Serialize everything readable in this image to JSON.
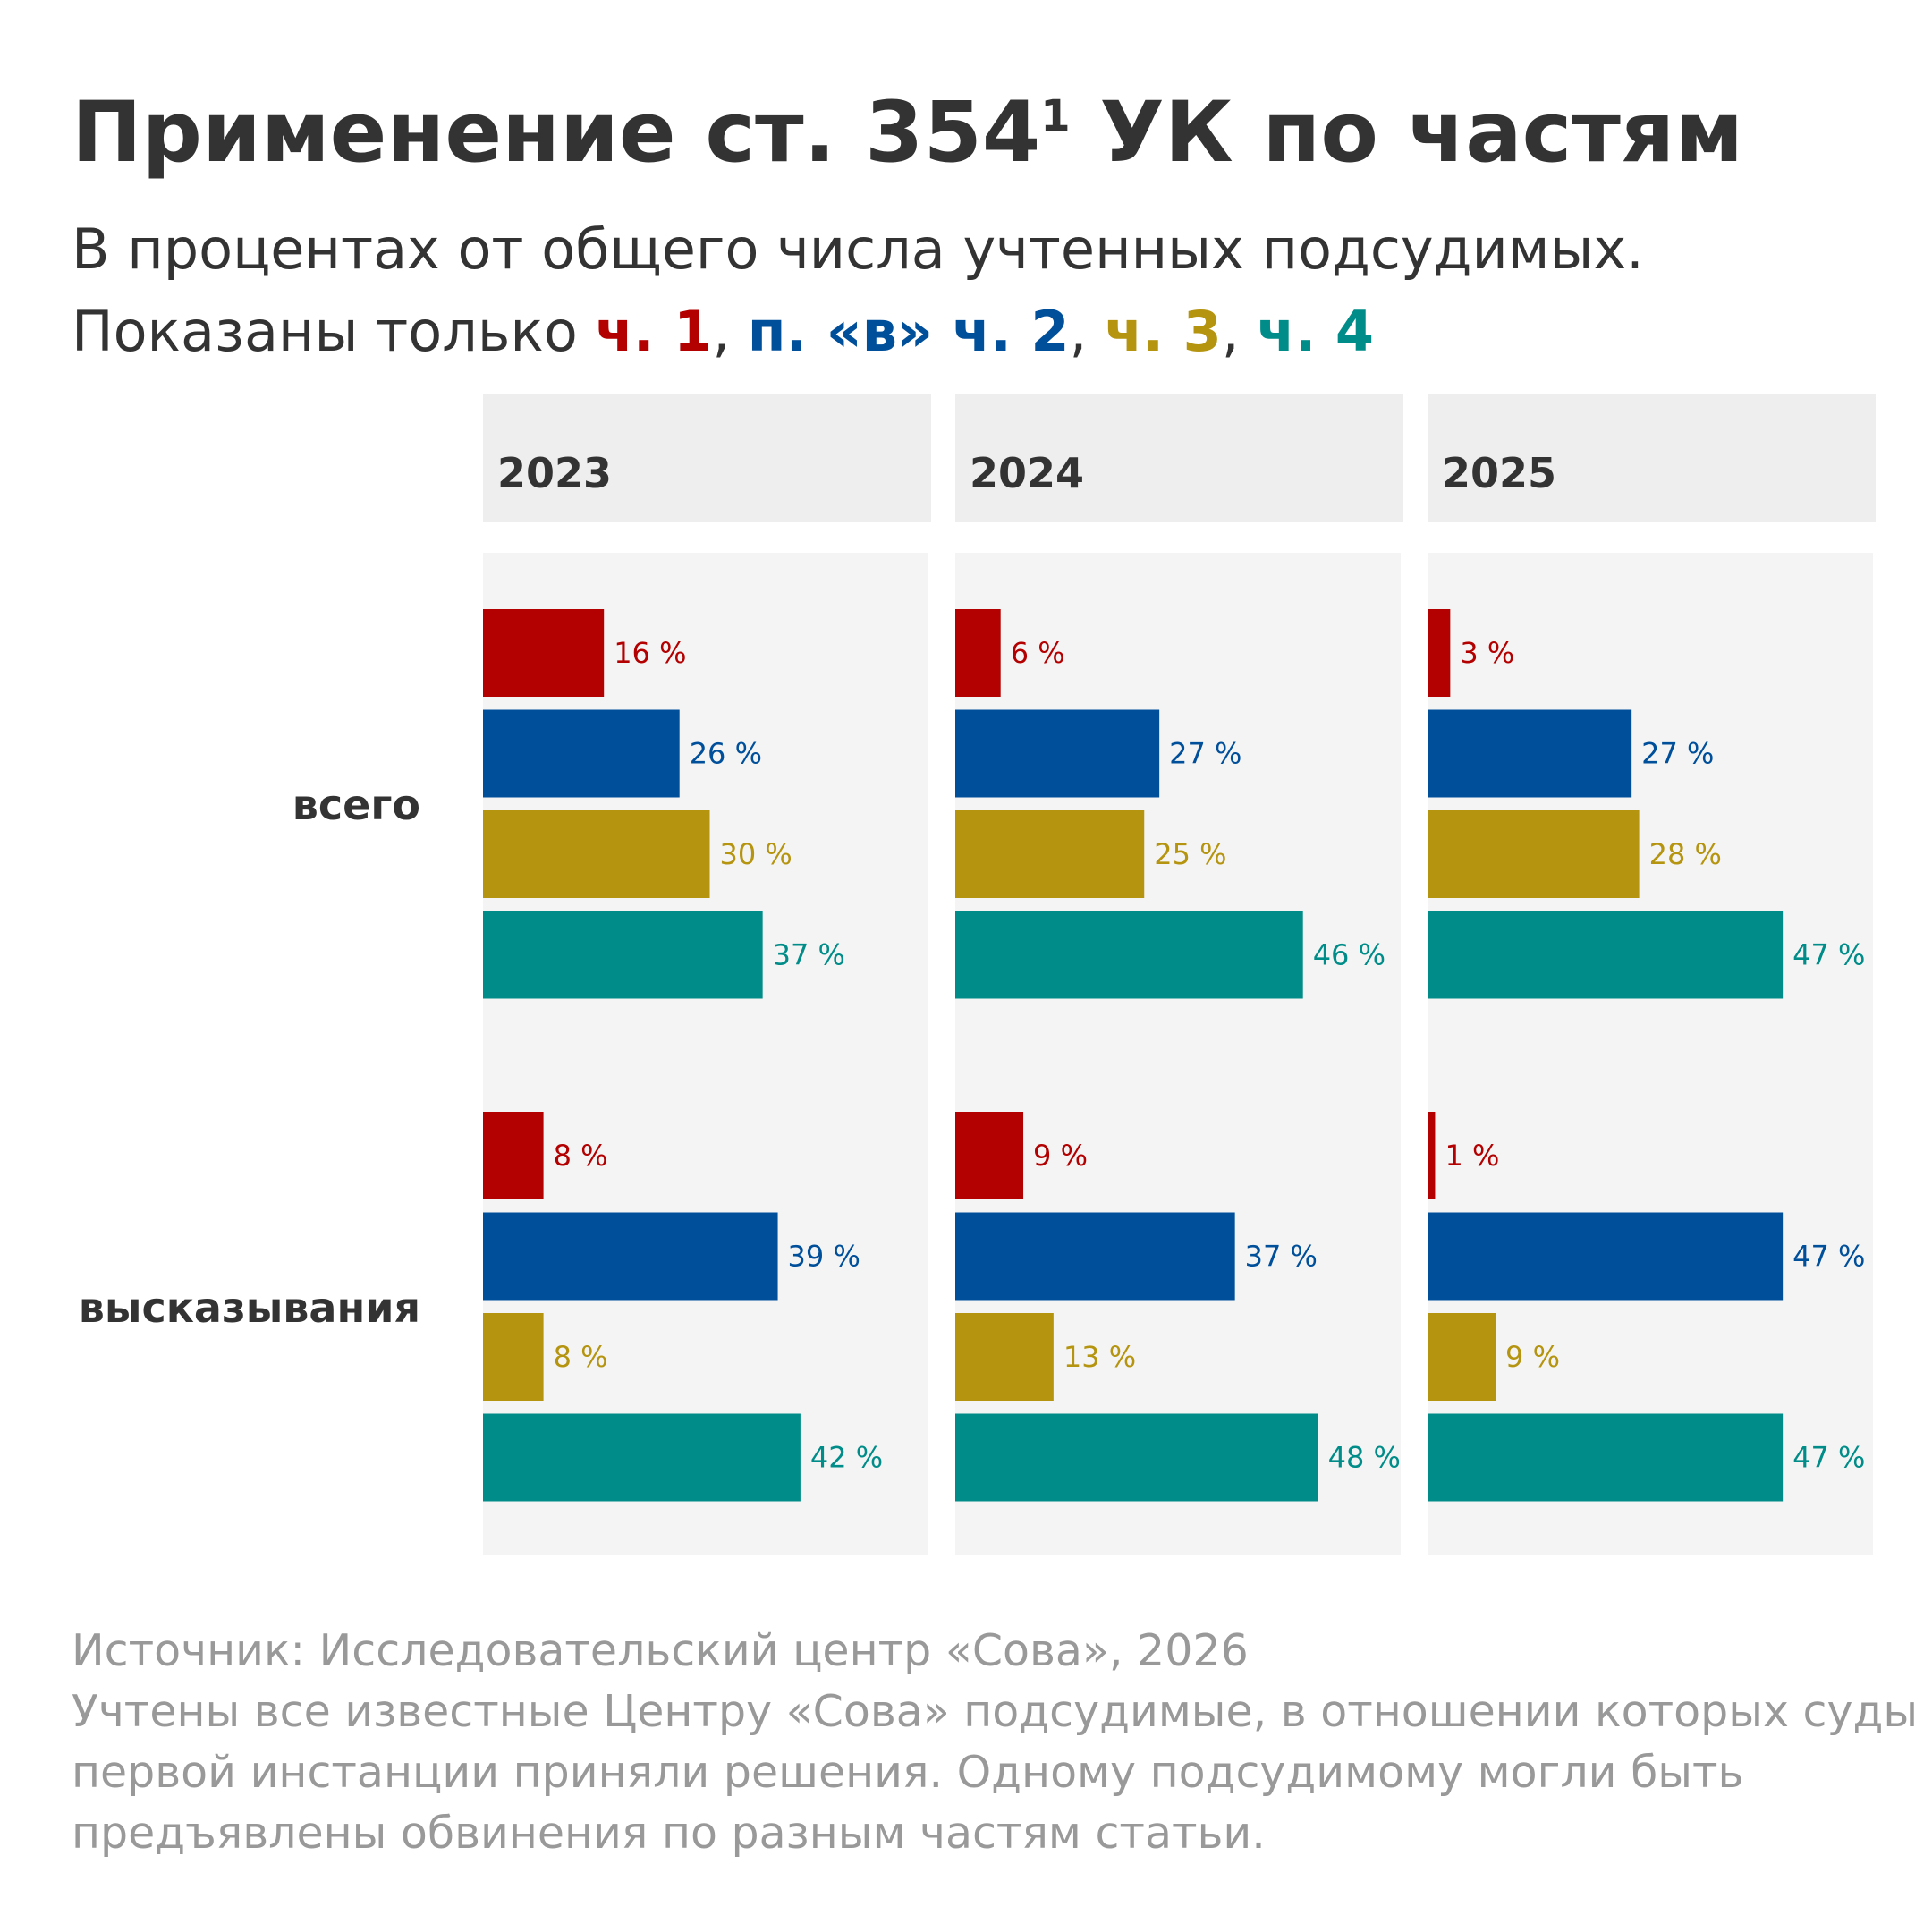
{
  "title": {
    "main": "Применение ст. 354",
    "superscript": "1",
    "rest": " УК по частям"
  },
  "subtitle": {
    "line1": "В процентах от общего числа учтенных подсудимых.",
    "line2_prefix": "Показаны только ",
    "parts": [
      {
        "label": "ч. 1",
        "color": "#b30000"
      },
      {
        "label": "п. «в» ч. 2",
        "color": "#004f9b"
      },
      {
        "label": "ч. 3",
        "color": "#b59410"
      },
      {
        "label": "ч. 4",
        "color": "#008c88"
      }
    ],
    "separator": ", "
  },
  "footer": {
    "source": "Источник: Исследовательский центр «Сова», 2026",
    "note_lines": [
      "Учтены все известные Центру «Сова» подсудимые, в отношении которых суды",
      "первой инстанции приняли решения. Одному подсудимому могли быть",
      "предъявлены обвинения по разным частям статьи."
    ]
  },
  "colors": {
    "panel_header_bg": "#eeeeee",
    "panel_bg": "#f4f4f4",
    "text": "#333333",
    "footer_text": "#999999"
  },
  "chart_data": {
    "type": "bar",
    "orientation": "horizontal",
    "panels": [
      "2023",
      "2024",
      "2025"
    ],
    "groups": [
      "всего",
      "высказывания"
    ],
    "series": [
      {
        "name": "ч. 1",
        "color": "#b30000"
      },
      {
        "name": "п. «в» ч. 2",
        "color": "#004f9b"
      },
      {
        "name": "ч. 3",
        "color": "#b59410"
      },
      {
        "name": "ч. 4",
        "color": "#008c88"
      }
    ],
    "values": {
      "2023": {
        "всего": [
          16,
          26,
          30,
          37
        ],
        "высказывания": [
          8,
          39,
          8,
          42
        ]
      },
      "2024": {
        "всего": [
          6,
          27,
          25,
          46
        ],
        "высказывания": [
          9,
          37,
          13,
          48
        ]
      },
      "2025": {
        "всего": [
          3,
          27,
          28,
          47
        ],
        "высказывания": [
          1,
          47,
          9,
          47
        ]
      }
    },
    "value_suffix": " %",
    "xlim": [
      0,
      60
    ],
    "grid": false
  }
}
